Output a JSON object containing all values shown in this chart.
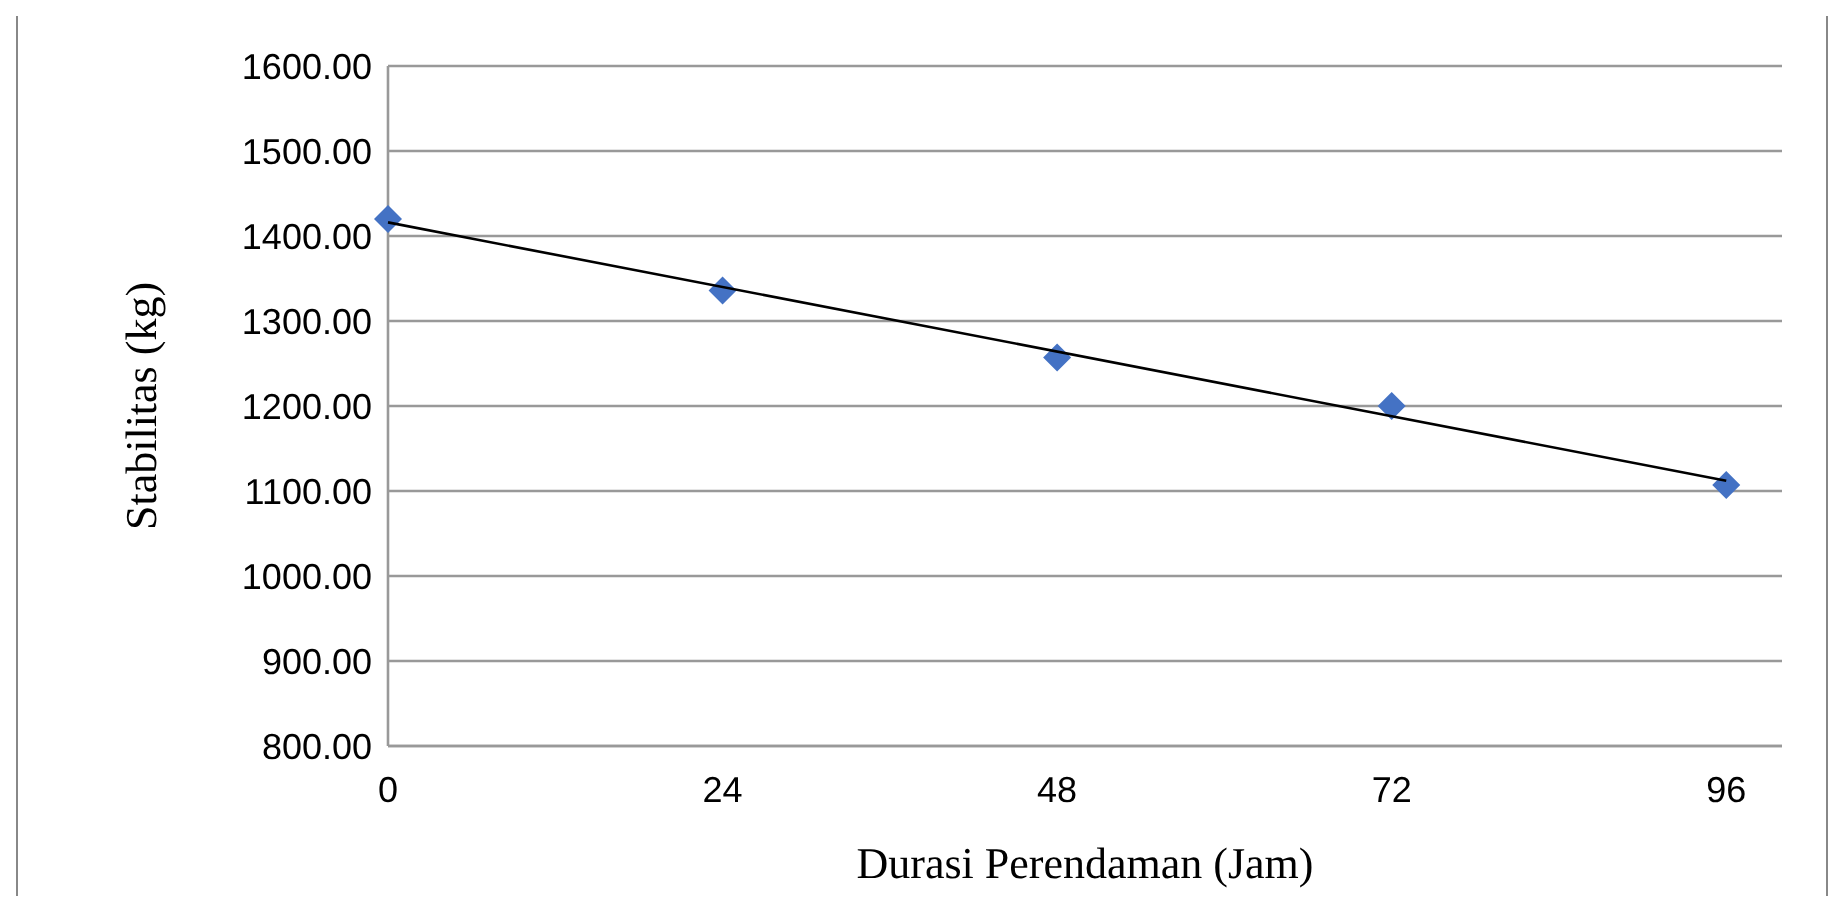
{
  "chart_data": {
    "type": "scatter",
    "xlabel": "Durasi Perendaman (Jam)",
    "ylabel": "Stabilitas (kg)",
    "xlim": [
      0,
      100
    ],
    "xticks": [
      0,
      24,
      48,
      72,
      96
    ],
    "ylim": [
      800,
      1600
    ],
    "yticks": [
      {
        "value": 800,
        "label": "800.00"
      },
      {
        "value": 900,
        "label": "900.00"
      },
      {
        "value": 1000,
        "label": "1000.00"
      },
      {
        "value": 1100,
        "label": "1100.00"
      },
      {
        "value": 1200,
        "label": "1200.00"
      },
      {
        "value": 1300,
        "label": "1300.00"
      },
      {
        "value": 1400,
        "label": "1400.00"
      },
      {
        "value": 1500,
        "label": "1500.00"
      },
      {
        "value": 1600,
        "label": "1600.00"
      }
    ],
    "grid": "y",
    "series": [
      {
        "marker": "diamond",
        "color": "#4472c4",
        "x": [
          0,
          24,
          48,
          72,
          96
        ],
        "values": [
          1420,
          1336,
          1257,
          1200,
          1107
        ]
      },
      {
        "type": "line",
        "marker": "none",
        "color": "#000000",
        "x": [
          0,
          96
        ],
        "values": [
          1416,
          1112
        ]
      }
    ]
  }
}
